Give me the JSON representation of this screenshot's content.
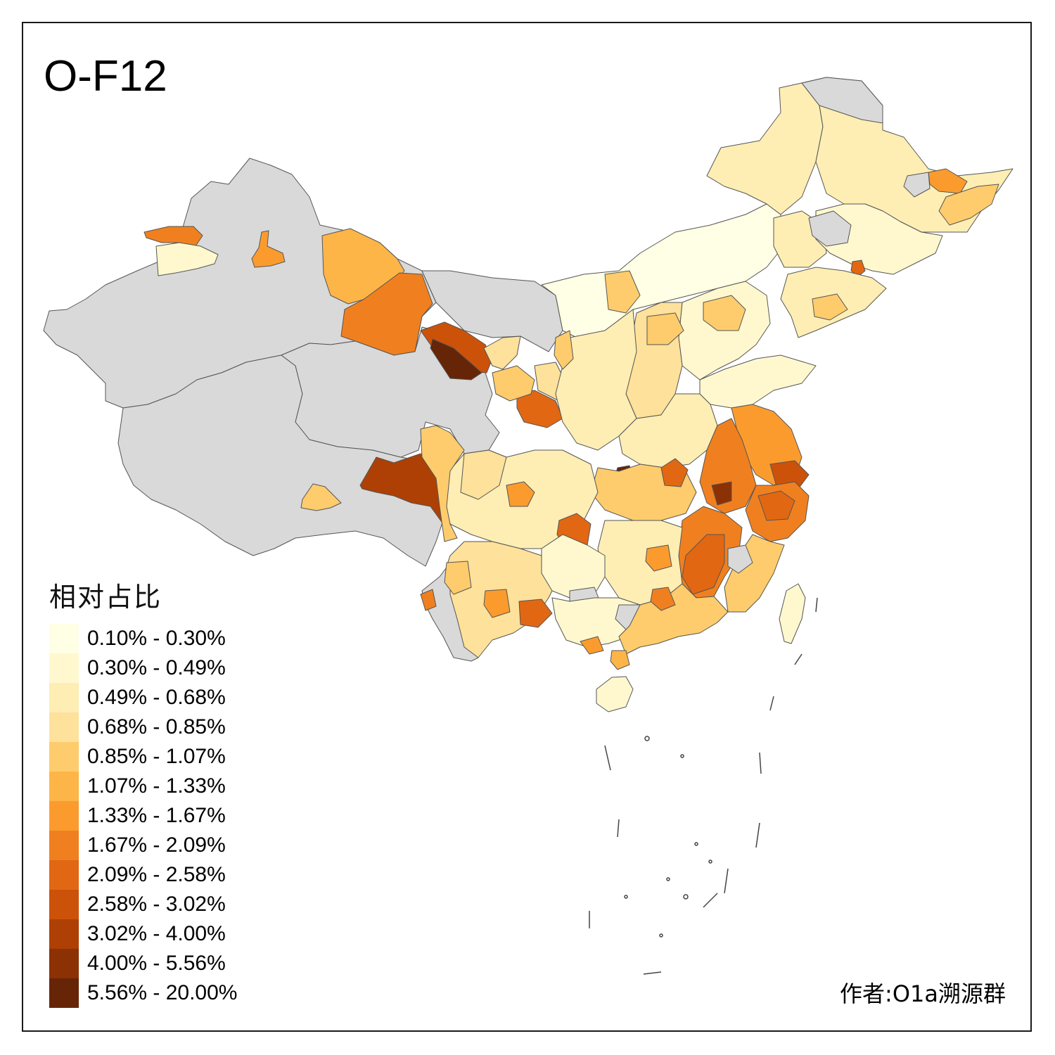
{
  "title": "O-F12",
  "author": "作者:O1a溯源群",
  "legend": {
    "title": "相对占比",
    "items": [
      {
        "label": "0.10% - 0.30%",
        "color": "#FFFFE5"
      },
      {
        "label": "0.30% - 0.49%",
        "color": "#FFF8CF"
      },
      {
        "label": "0.49% - 0.68%",
        "color": "#FEEEB4"
      },
      {
        "label": "0.68% - 0.85%",
        "color": "#FEE19A"
      },
      {
        "label": "0.85% - 1.07%",
        "color": "#FECC6C"
      },
      {
        "label": "1.07% - 1.33%",
        "color": "#FEB547"
      },
      {
        "label": "1.33% - 1.67%",
        "color": "#FB9B2E"
      },
      {
        "label": "1.67% - 2.09%",
        "color": "#F0801F"
      },
      {
        "label": "2.09% - 2.58%",
        "color": "#E26713"
      },
      {
        "label": "2.58% - 3.02%",
        "color": "#CC520A"
      },
      {
        "label": "3.02% - 4.00%",
        "color": "#AE4005"
      },
      {
        "label": "4.00% - 5.56%",
        "color": "#8C3104"
      },
      {
        "label": "5.56% - 20.00%",
        "color": "#662506"
      }
    ]
  },
  "colors": {
    "no_data": "#D9D9D9",
    "border": "#555555",
    "background": "#FFFFFF"
  }
}
